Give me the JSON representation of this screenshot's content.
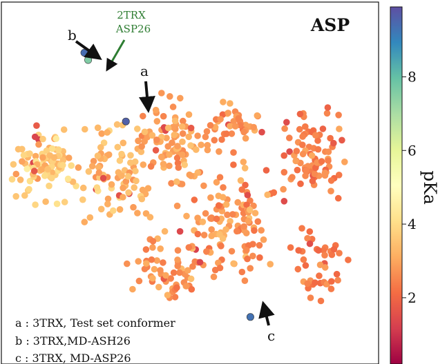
{
  "chart_data": {
    "type": "scatter",
    "title": "ASP",
    "xlabel": "",
    "ylabel": "",
    "axes_ticks_shown": false,
    "grid": false,
    "colorbar": {
      "label": "pKa",
      "colormap": "Spectral",
      "range": [
        0.2,
        9.9
      ],
      "ticks": [
        "2",
        "4",
        "6",
        "8"
      ],
      "tick_values": [
        2,
        4,
        6,
        8
      ]
    },
    "annotations": [
      {
        "letter": "b",
        "label": "b"
      },
      {
        "letter": "a",
        "label": "a"
      },
      {
        "letter": "c",
        "label": "c"
      }
    ],
    "callout": {
      "line1": "2TRX",
      "line2": "ASP26",
      "color": "#2e7d32"
    },
    "legend_lines": [
      "a : 3TRX, Test set conformer",
      "b : 3TRX,MD-ASH26",
      "c : 3TRX, MD-ASP26"
    ],
    "highlighted_points": [
      {
        "name": "a",
        "x": 0.33,
        "y": 0.67,
        "pka": 9.6
      },
      {
        "name": "b",
        "x": 0.22,
        "y": 0.86,
        "pka": 9.4
      },
      {
        "name": "c",
        "x": 0.66,
        "y": 0.13,
        "pka": 9.3
      },
      {
        "name": "2TRX ASP26",
        "x": 0.23,
        "y": 0.84,
        "pka": 7.6
      }
    ],
    "background_cloud": {
      "description_values_only": true,
      "n_points": 620,
      "pka_typical_range": [
        1.0,
        5.5
      ]
    }
  }
}
